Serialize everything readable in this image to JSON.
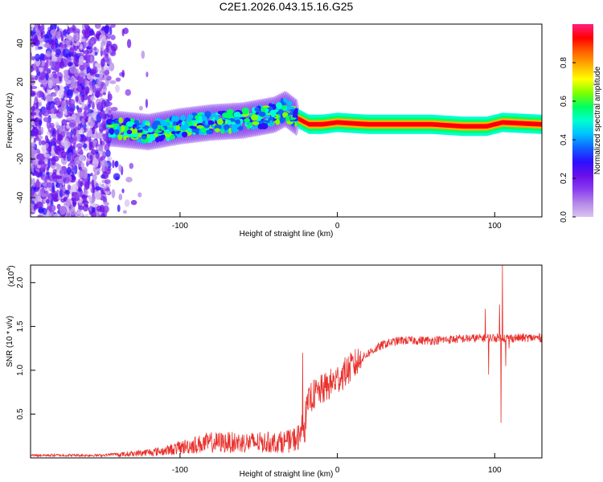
{
  "title": "C2E1.2026.043.15.16.G25",
  "colors": {
    "axis": "#000000",
    "snr_line": "#e8302c",
    "spectro_bg": "#ffffff"
  },
  "colormap": [
    "#d8c4f0",
    "#b488e8",
    "#8a3cf0",
    "#6a10e8",
    "#2a10ff",
    "#1060ff",
    "#00c0ff",
    "#00ffd0",
    "#00ff60",
    "#80ff00",
    "#ffff00",
    "#ffb000",
    "#ff6000",
    "#ff0000",
    "#ff2080"
  ],
  "chart_data": [
    {
      "type": "heatmap",
      "name": "spectrogram",
      "xlabel": "Height of straight line (km)",
      "ylabel": "Frequency (Hz)",
      "xlim": [
        -195,
        130
      ],
      "ylim": [
        -50,
        50
      ],
      "xticks": [
        {
          "v": -100,
          "label": "-100"
        },
        {
          "v": 0,
          "label": "0"
        },
        {
          "v": 100,
          "label": "100"
        }
      ],
      "yticks": [
        {
          "v": 40,
          "label": "40"
        },
        {
          "v": 20,
          "label": "20"
        },
        {
          "v": 0,
          "label": "0"
        },
        {
          "v": -20,
          "label": "-20"
        },
        {
          "v": -40,
          "label": "-40"
        }
      ],
      "colorbar": {
        "label": "Normalized spectral amplitude",
        "range": [
          0,
          1
        ],
        "ticks": [
          {
            "v": 0.0,
            "label": "0.0"
          },
          {
            "v": 0.2,
            "label": "0.2"
          },
          {
            "v": 0.4,
            "label": "0.4"
          },
          {
            "v": 0.6,
            "label": "0.6"
          },
          {
            "v": 0.8,
            "label": "0.8"
          }
        ]
      },
      "trace": [
        [
          -145,
          -4
        ],
        [
          -120,
          -6
        ],
        [
          -100,
          -3
        ],
        [
          -80,
          -1
        ],
        [
          -60,
          0
        ],
        [
          -40,
          3
        ],
        [
          -33,
          6
        ],
        [
          -25,
          1
        ],
        [
          -18,
          -2
        ],
        [
          -10,
          -2
        ],
        [
          0,
          -1
        ],
        [
          20,
          -2
        ],
        [
          40,
          -2
        ],
        [
          60,
          -2
        ],
        [
          80,
          -3
        ],
        [
          95,
          -3
        ],
        [
          105,
          -1
        ],
        [
          130,
          -2
        ]
      ],
      "noise_region": [
        -195,
        -145
      ]
    },
    {
      "type": "line",
      "name": "snr",
      "xlabel": "Height of straight line (km)",
      "ylabel": "SNR (10 * v/v)",
      "multiplier_label": "(x10",
      "multiplier_exp": "4",
      "xlim": [
        -195,
        130
      ],
      "ylim": [
        0,
        2.2
      ],
      "xticks": [
        {
          "v": -100,
          "label": "-100"
        },
        {
          "v": 0,
          "label": "0"
        },
        {
          "v": 100,
          "label": "100"
        }
      ],
      "yticks": [
        {
          "v": 2.0,
          "label": "2.0"
        },
        {
          "v": 1.5,
          "label": "1.5"
        },
        {
          "v": 1.0,
          "label": "1.0"
        },
        {
          "v": 0.5,
          "label": "0.5"
        }
      ],
      "envelope": [
        [
          -195,
          0.03
        ],
        [
          -150,
          0.03
        ],
        [
          -130,
          0.06
        ],
        [
          -110,
          0.1
        ],
        [
          -95,
          0.17
        ],
        [
          -80,
          0.22
        ],
        [
          -60,
          0.22
        ],
        [
          -40,
          0.22
        ],
        [
          -30,
          0.24
        ],
        [
          -24,
          0.3
        ],
        [
          -20,
          0.5
        ],
        [
          -17,
          0.7
        ],
        [
          -12,
          0.75
        ],
        [
          -5,
          0.83
        ],
        [
          0,
          0.9
        ],
        [
          10,
          1.05
        ],
        [
          20,
          1.2
        ],
        [
          30,
          1.3
        ],
        [
          40,
          1.34
        ],
        [
          60,
          1.34
        ],
        [
          80,
          1.36
        ],
        [
          95,
          1.37
        ],
        [
          110,
          1.37
        ],
        [
          130,
          1.37
        ]
      ],
      "spikes": [
        [
          -22,
          1.2
        ],
        [
          94,
          1.7
        ],
        [
          96,
          0.95
        ],
        [
          103,
          1.75
        ],
        [
          104,
          0.4
        ],
        [
          105,
          2.2
        ],
        [
          107,
          1.05
        ],
        [
          109,
          1.25
        ]
      ]
    }
  ]
}
